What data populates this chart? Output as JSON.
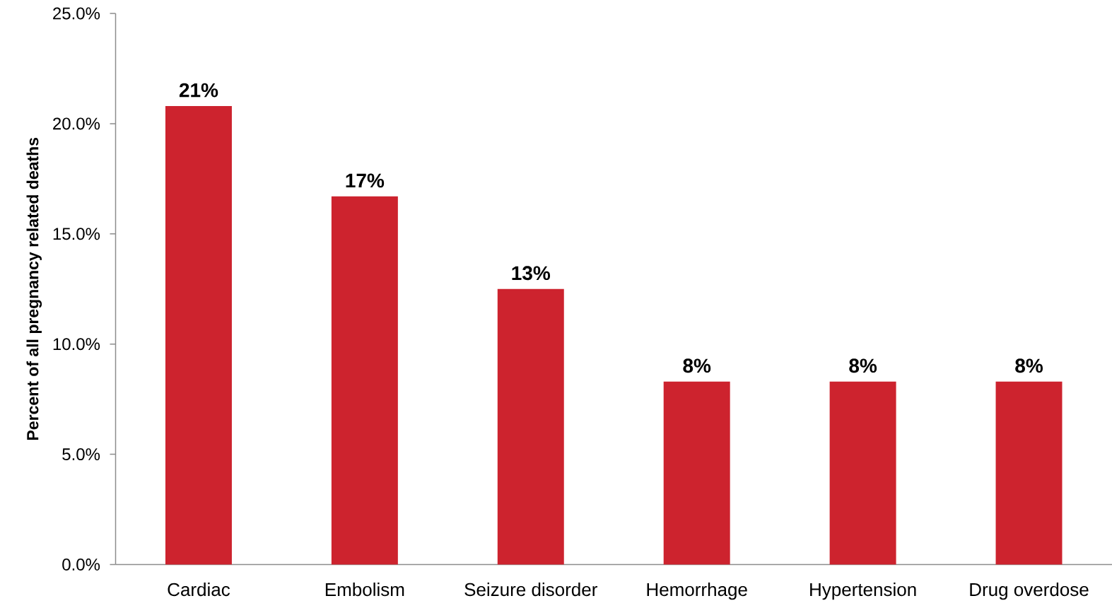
{
  "chart_data": {
    "type": "bar",
    "ylabel": "Percent of all pregnancy related deaths",
    "categories": [
      "Cardiac",
      "Embolism",
      "Seizure disorder",
      "Hemorrhage",
      "Hypertension",
      "Drug overdose"
    ],
    "values": [
      20.8,
      16.7,
      12.5,
      8.3,
      8.3,
      8.3
    ],
    "value_labels": [
      "21%",
      "17%",
      "13%",
      "8%",
      "8%",
      "8%"
    ],
    "color": "#cd232e",
    "ylim": [
      0,
      25
    ],
    "yticks": [
      {
        "value": 0,
        "label": "0.0%"
      },
      {
        "value": 5,
        "label": "5.0%"
      },
      {
        "value": 10,
        "label": "10.0%"
      },
      {
        "value": 15,
        "label": "15.0%"
      },
      {
        "value": 20,
        "label": "20.0%"
      },
      {
        "value": 25,
        "label": "25.0%"
      }
    ]
  }
}
